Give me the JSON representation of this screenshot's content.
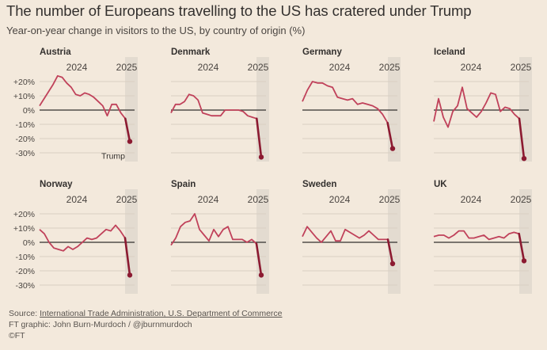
{
  "header": {
    "title": "The number of Europeans travelling to the US has cratered under Trump",
    "subtitle": "Year-on-year change in visitors to the US, by country of origin (%)"
  },
  "footer": {
    "source_prefix": "Source: ",
    "source_link": "International Trade Administration, U.S. Department of Commerce",
    "credit": "FT graphic: John Burn-Murdoch / @jburnmurdoch",
    "copyright": "©FT"
  },
  "colors": {
    "background": "#f3e9dc",
    "line": "#c0415a",
    "endpoint": "#8c1a31",
    "gridline": "#d9cfc2",
    "zero_line": "#33302e",
    "highlight_band": "#e3dbd0"
  },
  "chart_data": [
    {
      "type": "line",
      "title": "Austria",
      "x_tick_labels": [
        "2024",
        "2025"
      ],
      "y_tick_labels": [
        "+20%",
        "+10%",
        "0%",
        "-10%",
        "-20%",
        "-30%"
      ],
      "ylim": [
        -35,
        25
      ],
      "grid": true,
      "annotation": "Trump",
      "values": [
        3,
        8,
        13,
        18,
        24,
        23,
        19,
        16,
        11,
        10,
        12,
        11,
        9,
        6,
        3,
        -4,
        4,
        4,
        -2,
        -6,
        -22
      ]
    },
    {
      "type": "line",
      "title": "Denmark",
      "x_tick_labels": [
        "2024",
        "2025"
      ],
      "values": [
        -2,
        4,
        4,
        6,
        11,
        10,
        7,
        -2,
        -3,
        -4,
        -4,
        -4,
        0,
        0,
        0,
        0,
        -1,
        -4,
        -5,
        -6,
        -33
      ]
    },
    {
      "type": "line",
      "title": "Germany",
      "x_tick_labels": [
        "2024",
        "2025"
      ],
      "values": [
        6,
        14,
        20,
        19,
        19,
        17,
        16,
        9,
        8,
        7,
        8,
        4,
        5,
        4,
        3,
        1,
        -3,
        -9,
        -27
      ]
    },
    {
      "type": "line",
      "title": "Iceland",
      "x_tick_labels": [
        "2024",
        "2025"
      ],
      "values": [
        -8,
        8,
        -5,
        -12,
        -1,
        3,
        16,
        1,
        -2,
        -5,
        -1,
        5,
        12,
        11,
        -1,
        2,
        1,
        -3,
        -6,
        -34
      ]
    },
    {
      "type": "line",
      "title": "Norway",
      "x_tick_labels": [
        "2024",
        "2025"
      ],
      "values": [
        9,
        6,
        0,
        -4,
        -5,
        -6,
        -3,
        -5,
        -3,
        0,
        3,
        2,
        3,
        6,
        9,
        8,
        12,
        8,
        3,
        -23
      ]
    },
    {
      "type": "line",
      "title": "Spain",
      "x_tick_labels": [
        "2024",
        "2025"
      ],
      "values": [
        -2,
        3,
        11,
        14,
        15,
        20,
        9,
        5,
        1,
        9,
        4,
        9,
        11,
        2,
        2,
        2,
        0,
        2,
        -1,
        -23
      ]
    },
    {
      "type": "line",
      "title": "Sweden",
      "x_tick_labels": [
        "2024",
        "2025"
      ],
      "values": [
        4,
        11,
        7,
        3,
        0,
        4,
        8,
        1,
        1,
        9,
        7,
        5,
        3,
        5,
        8,
        5,
        2,
        2,
        2,
        -15
      ]
    },
    {
      "type": "line",
      "title": "UK",
      "x_tick_labels": [
        "2024",
        "2025"
      ],
      "values": [
        4,
        5,
        5,
        3,
        5,
        8,
        8,
        3,
        3,
        4,
        5,
        2,
        3,
        4,
        3,
        6,
        7,
        6,
        -13
      ]
    }
  ]
}
